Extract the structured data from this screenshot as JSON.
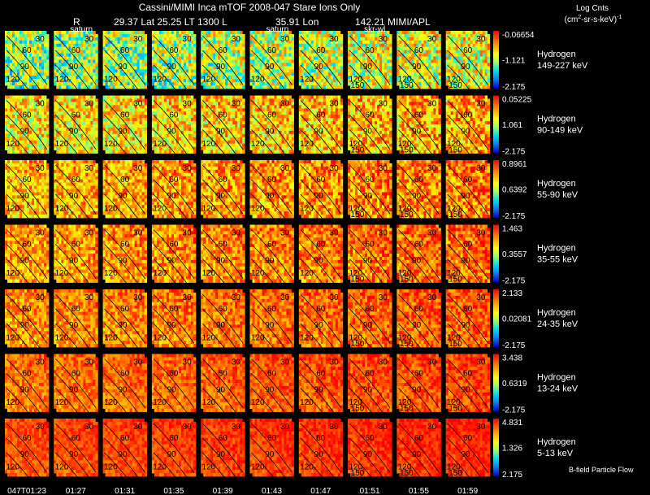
{
  "chart_data": {
    "type": "heatmap",
    "title": "Cassini/MIMI Inca mTOF  2008-047   Stare    Ions Only",
    "subtitle": {
      "r_label": "R",
      "position": "29.37 Lat 25.25 LT 1300 L",
      "lon": "35.91 Lon",
      "mission": "142.21  MIMI/APL"
    },
    "colorbar_title": "Log Cnts",
    "colorbar_units": "(cm²-sr-s-keV)⁻¹",
    "colorbar_units_base": "(cm",
    "colorbar_units_sup1": "2",
    "colorbar_units_rest": "-sr-s-keV)",
    "colorbar_units_sup2": "-1",
    "time_labels": [
      "047T01:23",
      "01:27",
      "01:31",
      "01:35",
      "01:39",
      "01:43",
      "01:47",
      "01:51",
      "01:55",
      "01:59"
    ],
    "panel_overlay_labels": [
      {
        "column": 1,
        "row": 0,
        "text": "saturn"
      },
      {
        "column": 5,
        "row": 0,
        "text": "saturn"
      },
      {
        "column": 7,
        "row": 0,
        "text": "skr-wl"
      }
    ],
    "contour_labels": [
      "30",
      "60",
      "90",
      "120",
      "150"
    ],
    "bands": [
      {
        "species": "Hydrogen",
        "energy": "149-227 keV",
        "scale_max": "-0.06654",
        "scale_mid": "-1.121",
        "scale_min": "-2.175",
        "mean_level": 0.47
      },
      {
        "species": "Hydrogen",
        "energy": "90-149 keV",
        "scale_max": "0.05225",
        "scale_mid": "1.061",
        "scale_min": "-2.175",
        "mean_level": 0.62
      },
      {
        "species": "Hydrogen",
        "energy": "55-90 keV",
        "scale_max": "0.8961",
        "scale_mid": "0.6392",
        "scale_min": "-2.175",
        "mean_level": 0.71
      },
      {
        "species": "Hydrogen",
        "energy": "35-55 keV",
        "scale_max": "1.463",
        "scale_mid": "0.3557",
        "scale_min": "-2.175",
        "mean_level": 0.75
      },
      {
        "species": "Hydrogen",
        "energy": "24-35 keV",
        "scale_max": "2.133",
        "scale_mid": "0.02081",
        "scale_min": "-2.175",
        "mean_level": 0.78
      },
      {
        "species": "Hydrogen",
        "energy": "13-24 keV",
        "scale_max": "3.438",
        "scale_mid": "0.6319",
        "scale_min": "-2.175",
        "mean_level": 0.82
      },
      {
        "species": "Hydrogen",
        "energy": "5-13 keV",
        "scale_max": "4.831",
        "scale_mid": "1.326",
        "scale_min": "2.175",
        "mean_level": 0.88
      }
    ],
    "legend_note": "B-field Particle Flow"
  }
}
